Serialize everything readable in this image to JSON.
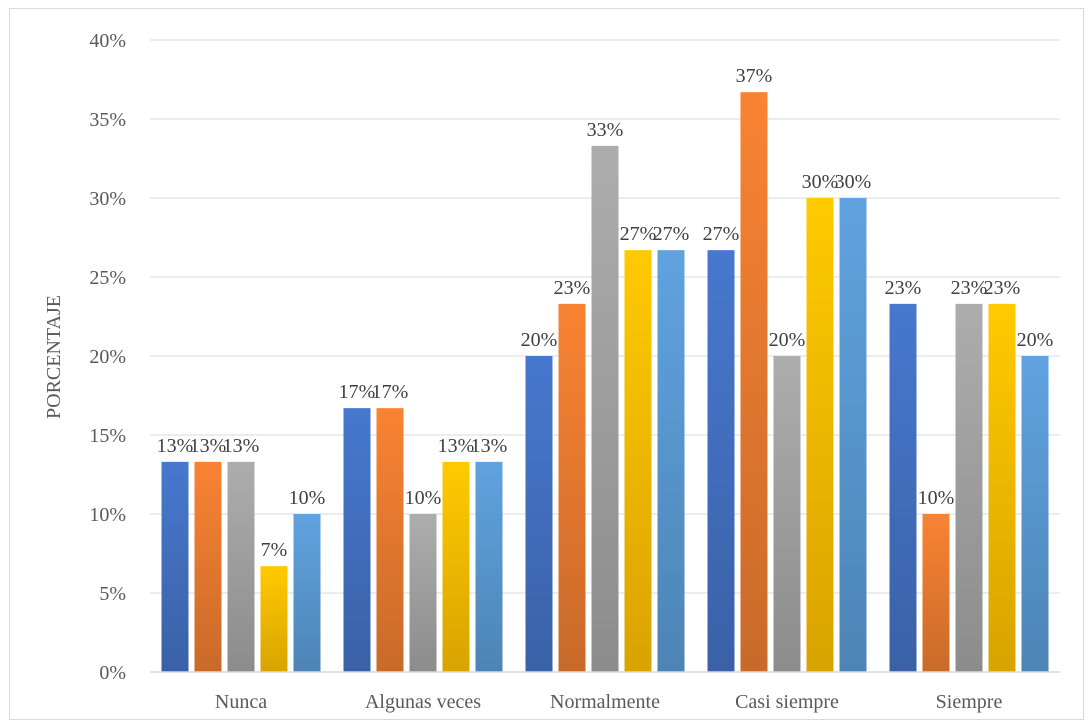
{
  "chart_data": {
    "type": "bar",
    "ylabel": "PORCENTAJE",
    "xlabel": "",
    "ylim": [
      0,
      40
    ],
    "y_ticks": [
      "0%",
      "5%",
      "10%",
      "15%",
      "20%",
      "25%",
      "30%",
      "35%",
      "40%"
    ],
    "grid": true,
    "legend": "none",
    "categories": [
      "Nunca",
      "Algunas veces",
      "Normalmente",
      "Casi siempre",
      "Siempre"
    ],
    "series": [
      {
        "color": "#4472c4",
        "values": [
          13.3,
          16.7,
          20.0,
          26.7,
          23.3
        ],
        "labels": [
          "13%",
          "17%",
          "20%",
          "27%",
          "23%"
        ]
      },
      {
        "color": "#ed7d31",
        "values": [
          13.3,
          16.7,
          23.3,
          36.7,
          10.0
        ],
        "labels": [
          "13%",
          "17%",
          "23%",
          "37%",
          "10%"
        ]
      },
      {
        "color": "#a5a5a5",
        "values": [
          13.3,
          10.0,
          33.3,
          20.0,
          23.3
        ],
        "labels": [
          "13%",
          "10%",
          "33%",
          "20%",
          "23%"
        ]
      },
      {
        "color": "#ffc000",
        "values": [
          6.7,
          13.3,
          26.7,
          30.0,
          23.3
        ],
        "labels": [
          "7%",
          "13%",
          "27%",
          "30%",
          "23%"
        ]
      },
      {
        "color": "#5b9bd5",
        "values": [
          10.0,
          13.3,
          26.7,
          30.0,
          20.0
        ],
        "labels": [
          "10%",
          "13%",
          "27%",
          "30%",
          "20%"
        ]
      }
    ]
  }
}
